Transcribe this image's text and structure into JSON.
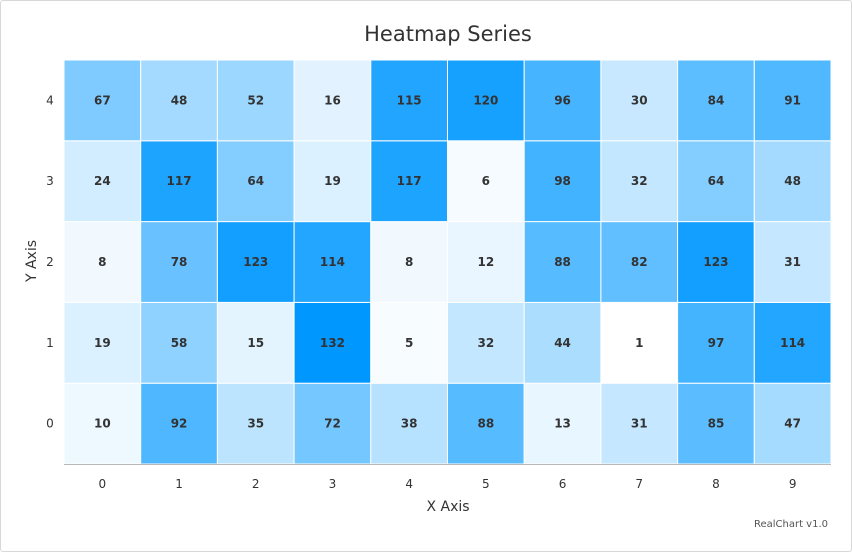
{
  "chart_data": {
    "type": "heatmap",
    "title": "Heatmap Series",
    "xlabel": "X Axis",
    "ylabel": "Y Axis",
    "x_categories": [
      "0",
      "1",
      "2",
      "3",
      "4",
      "5",
      "6",
      "7",
      "8",
      "9"
    ],
    "y_categories": [
      "0",
      "1",
      "2",
      "3",
      "4"
    ],
    "values": [
      [
        10,
        92,
        35,
        72,
        38,
        88,
        13,
        31,
        85,
        47
      ],
      [
        19,
        58,
        15,
        132,
        5,
        32,
        44,
        1,
        97,
        114
      ],
      [
        8,
        78,
        123,
        114,
        8,
        12,
        88,
        82,
        123,
        31
      ],
      [
        24,
        117,
        64,
        19,
        117,
        6,
        98,
        32,
        64,
        48
      ],
      [
        67,
        48,
        52,
        16,
        115,
        120,
        96,
        30,
        84,
        91
      ]
    ],
    "value_range": [
      1,
      132
    ],
    "color_min": "#ffffff",
    "color_max": "#0098ff",
    "cell_border_color": "#ffffff"
  },
  "credit": "RealChart v1.0"
}
